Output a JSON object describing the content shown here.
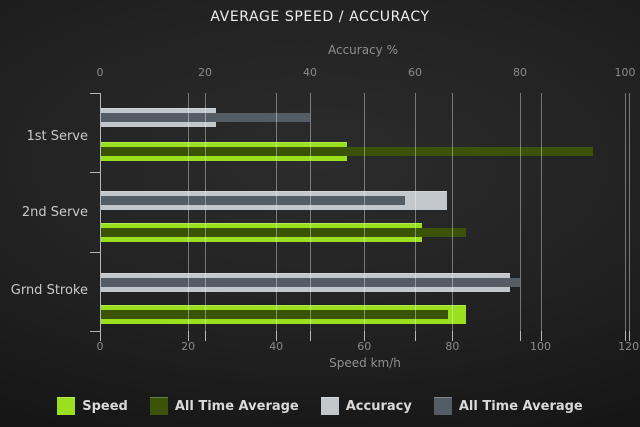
{
  "chart_data": {
    "type": "bar",
    "orientation": "horizontal",
    "title": "AVERAGE SPEED / ACCURACY",
    "categories": [
      "1st Serve",
      "2nd Serve",
      "Grnd Stroke"
    ],
    "series": [
      {
        "name": "Speed",
        "axis": "speed",
        "color": "#9BE01E",
        "values": [
          56,
          73,
          83
        ]
      },
      {
        "name": "All Time Average",
        "axis": "speed",
        "color": "#3A5306",
        "values": [
          112,
          83,
          79
        ]
      },
      {
        "name": "Accuracy",
        "axis": "accuracy",
        "color": "#C2C7CB",
        "values": [
          22,
          66,
          78
        ]
      },
      {
        "name": "All Time Average",
        "axis": "accuracy",
        "color": "#545C66",
        "values": [
          40,
          58,
          80
        ]
      }
    ],
    "axes": {
      "top": {
        "label": "Accuracy %",
        "min": 0,
        "max": 100,
        "ticks": [
          0,
          20,
          40,
          60,
          80,
          100
        ]
      },
      "bottom": {
        "label": "Speed km/h",
        "min": 0,
        "max": 120,
        "ticks": [
          0,
          20,
          40,
          60,
          80,
          100,
          120
        ]
      }
    },
    "grid": true,
    "legend_position": "bottom",
    "legend_labels": [
      "Speed",
      "All Time Average",
      "Accuracy",
      "All Time Average"
    ]
  }
}
